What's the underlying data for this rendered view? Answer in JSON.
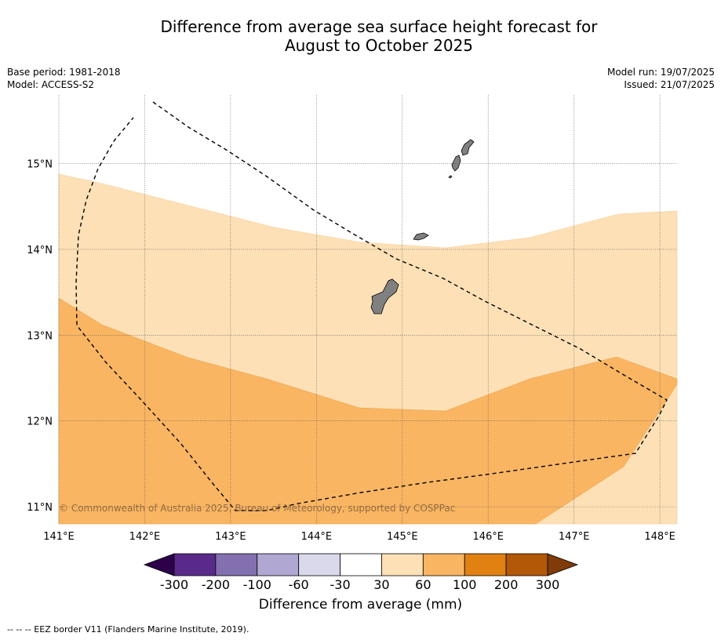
{
  "title_line1": "Difference from average sea surface height forecast for",
  "title_line2": "August to October 2025",
  "meta_left": [
    "Base period: 1981-2018",
    "Model: ACCESS-S2"
  ],
  "meta_right": [
    "Model run: 19/07/2025",
    "Issued: 21/07/2025"
  ],
  "map": {
    "lon_range": [
      141.0,
      148.2
    ],
    "lat_range": [
      10.8,
      15.8
    ],
    "lon_ticks": [
      {
        "value": 141,
        "label": "141°E"
      },
      {
        "value": 142,
        "label": "142°E"
      },
      {
        "value": 143,
        "label": "143°E"
      },
      {
        "value": 144,
        "label": "144°E"
      },
      {
        "value": 145,
        "label": "145°E"
      },
      {
        "value": 146,
        "label": "146°E"
      },
      {
        "value": 147,
        "label": "147°E"
      },
      {
        "value": 148,
        "label": "148°E"
      }
    ],
    "lat_ticks": [
      {
        "value": 11,
        "label": "11°N"
      },
      {
        "value": 12,
        "label": "12°N"
      },
      {
        "value": 13,
        "label": "13°N"
      },
      {
        "value": 14,
        "label": "14°N"
      },
      {
        "value": 15,
        "label": "15°N"
      }
    ],
    "copyright": "© Commonwealth of Australia 2025, Bureau of Meteorology, supported by COSPPac"
  },
  "colorbar": {
    "labels": [
      "-300",
      "-200",
      "-100",
      "-60",
      "-30",
      "30",
      "60",
      "100",
      "200",
      "300"
    ],
    "colors": [
      "#5a2a8a",
      "#8370b0",
      "#b0a8d2",
      "#d9d9eb",
      "#ffffff",
      "#fde0b6",
      "#f9b562",
      "#e08112",
      "#b35806"
    ],
    "under_color": "#2d004b",
    "over_color": "#7f3b08",
    "title": "Difference from average (mm)"
  },
  "footer": "--  --  -- EEZ border V11 (Flanders Marine Institute, 2019)."
}
